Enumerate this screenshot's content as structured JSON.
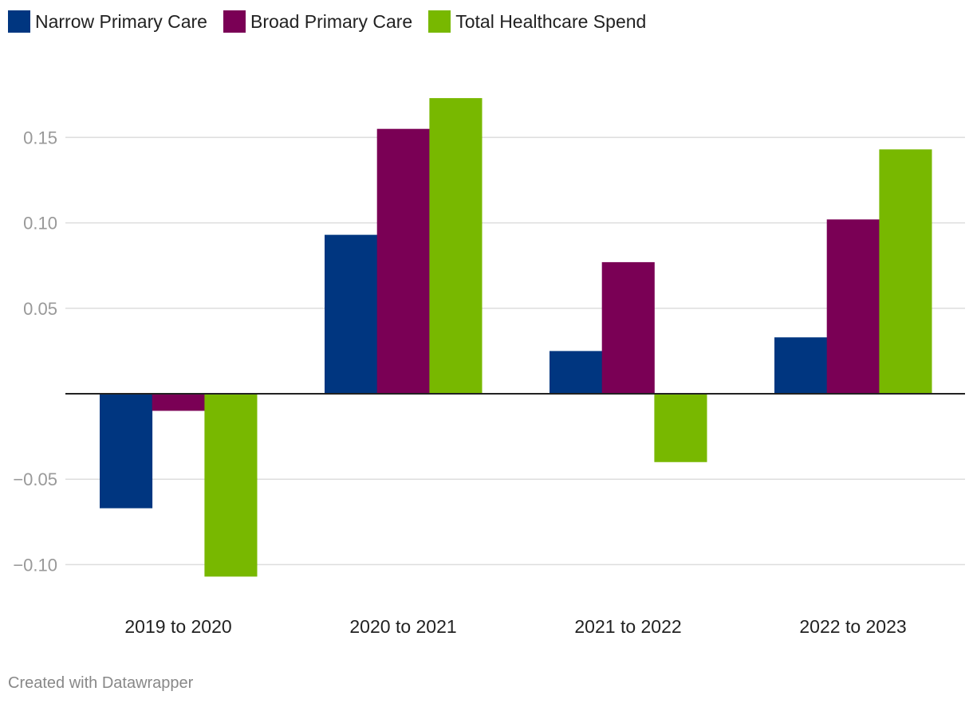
{
  "chart_data": {
    "type": "bar",
    "categories": [
      "2019 to 2020",
      "2020 to 2021",
      "2021 to 2022",
      "2022 to 2023"
    ],
    "series": [
      {
        "name": "Narrow Primary Care",
        "color": "#003680",
        "values": [
          -0.067,
          0.093,
          0.025,
          0.033
        ]
      },
      {
        "name": "Broad Primary Care",
        "color": "#7a0055",
        "values": [
          -0.01,
          0.155,
          0.077,
          0.102
        ]
      },
      {
        "name": "Total Healthcare Spend",
        "color": "#78b800",
        "values": [
          -0.107,
          0.173,
          -0.04,
          0.143
        ]
      }
    ],
    "yticks": [
      0.15,
      0.1,
      0.05,
      -0.05,
      -0.1
    ],
    "ytick_labels": [
      "0.15",
      "0.10",
      "0.05",
      "−0.05",
      "−0.10"
    ],
    "ylim": [
      -0.125,
      0.18
    ],
    "title": "",
    "xlabel": "",
    "ylabel": "",
    "grid": true,
    "legend_position": "top-left"
  },
  "credit": "Created with Datawrapper"
}
